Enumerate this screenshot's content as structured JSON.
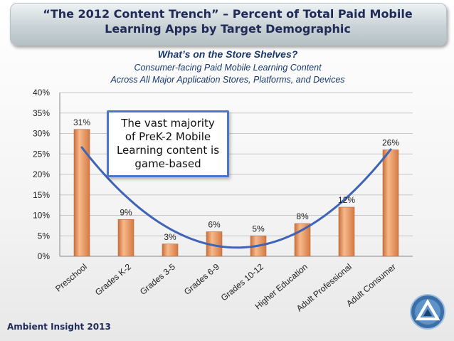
{
  "header": {
    "title": "“The 2012 Content Trench” – Percent of Total Paid Mobile\nLearning Apps by Target Demographic",
    "subtitle": "What’s on the Store Shelves?",
    "description_1": "Consumer-facing Paid Mobile Learning Content",
    "description_2": "Across All Major Application Stores, Platforms, and Devices"
  },
  "callout": {
    "text": "The vast majority\nof PreK-2 Mobile\nLearning content is\ngame-based"
  },
  "footer": {
    "source": "Ambient Insight 2013"
  },
  "logo": {
    "icon": "triangle-logo-icon"
  },
  "colors": {
    "bar": "#e89c66",
    "trend": "#3f63b6",
    "title": "#1f2a58"
  },
  "chart_data": {
    "type": "bar",
    "title": "The 2012 Content Trench",
    "categories": [
      "Preschool",
      "Grades K-2",
      "Grades 3-5",
      "Grades 6-9",
      "Grades 10-12",
      "Higher Education",
      "Adult Professional",
      "Adult Consumer"
    ],
    "values": [
      31,
      9,
      3,
      6,
      5,
      8,
      12,
      26
    ],
    "value_labels": [
      "31%",
      "9%",
      "3%",
      "6%",
      "5%",
      "8%",
      "12%",
      "26%"
    ],
    "ylim": [
      0,
      40
    ],
    "yticks": [
      "0%",
      "5%",
      "10%",
      "15%",
      "20%",
      "25%",
      "30%",
      "35%",
      "40%"
    ],
    "xlabel": "",
    "ylabel": "",
    "grid": true,
    "trendline": "polynomial"
  }
}
